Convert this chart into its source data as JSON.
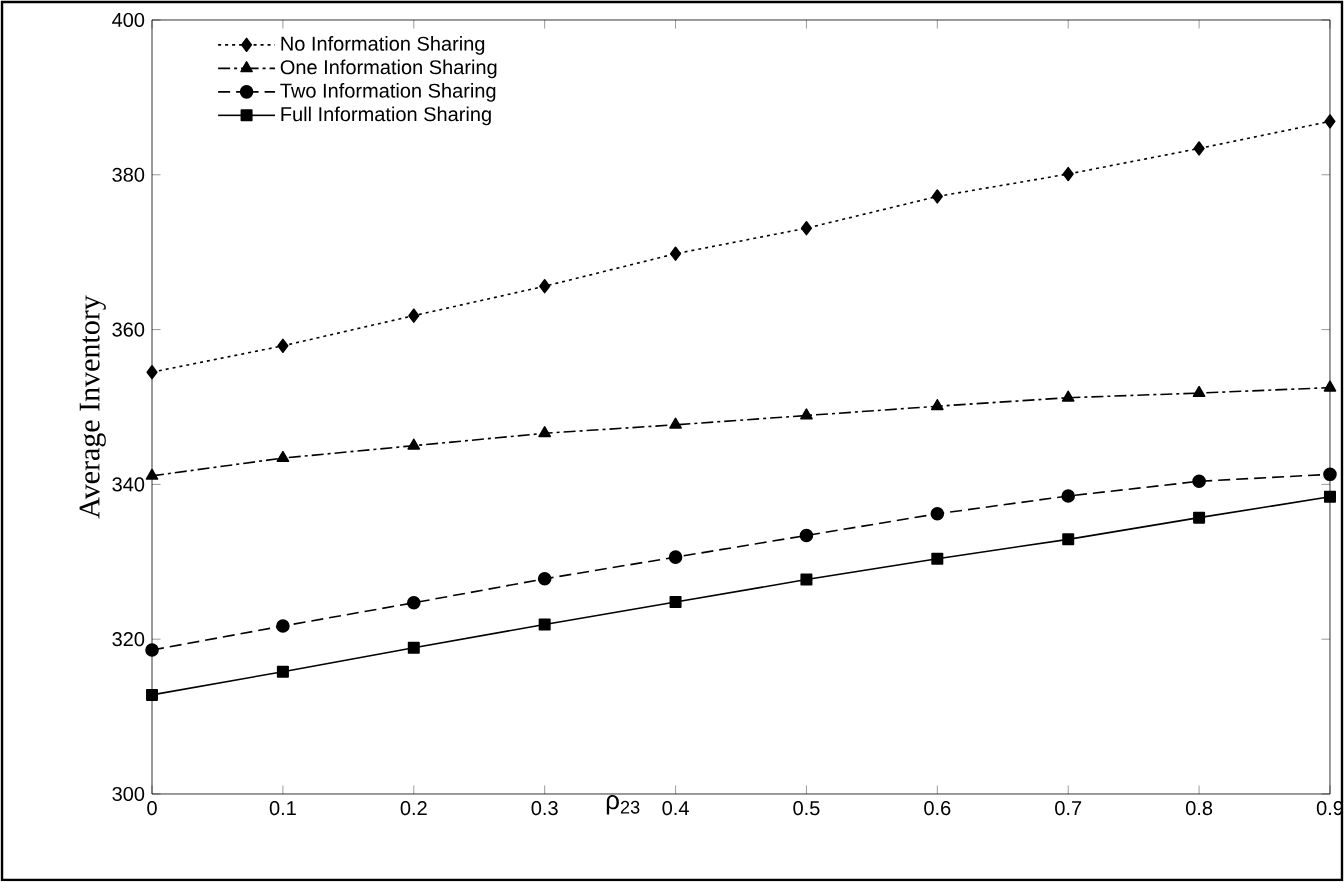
{
  "chart_data": {
    "type": "line",
    "xlabel": "ρ$_{23}$",
    "ylabel": "Average Inventory",
    "x": [
      0,
      0.1,
      0.2,
      0.3,
      0.4,
      0.5,
      0.6,
      0.7,
      0.8,
      0.9
    ],
    "xlim": [
      0,
      0.9
    ],
    "xticks": [
      0,
      0.1,
      0.2,
      0.3,
      0.4,
      0.5,
      0.6,
      0.7,
      0.8,
      0.9
    ],
    "ylim": [
      300,
      400
    ],
    "yticks": [
      300,
      320,
      340,
      360,
      380,
      400
    ],
    "grid": false,
    "legend": "top left",
    "series": [
      {
        "name": "No Information Sharing",
        "color": "#000000",
        "marker": "diamond",
        "line_style": "dotted",
        "values": [
          354.5,
          357.9,
          361.8,
          365.6,
          369.8,
          373.1,
          377.2,
          380.1,
          383.4,
          386.9
        ]
      },
      {
        "name": "One Information Sharing",
        "color": "#000000",
        "marker": "triangle",
        "line_style": "dashdot",
        "values": [
          341.1,
          343.4,
          345.0,
          346.6,
          347.7,
          348.9,
          350.1,
          351.2,
          351.8,
          352.5
        ]
      },
      {
        "name": "Two Information Sharing",
        "color": "#000000",
        "marker": "circle",
        "line_style": "dashed",
        "values": [
          318.6,
          321.7,
          324.7,
          327.8,
          330.6,
          333.4,
          336.2,
          338.5,
          340.4,
          341.3
        ]
      },
      {
        "name": "Full Information Sharing",
        "color": "#000000",
        "marker": "square",
        "line_style": "solid",
        "values": [
          312.8,
          315.8,
          318.9,
          321.9,
          324.8,
          327.7,
          330.4,
          332.9,
          335.7,
          338.4
        ]
      }
    ]
  }
}
